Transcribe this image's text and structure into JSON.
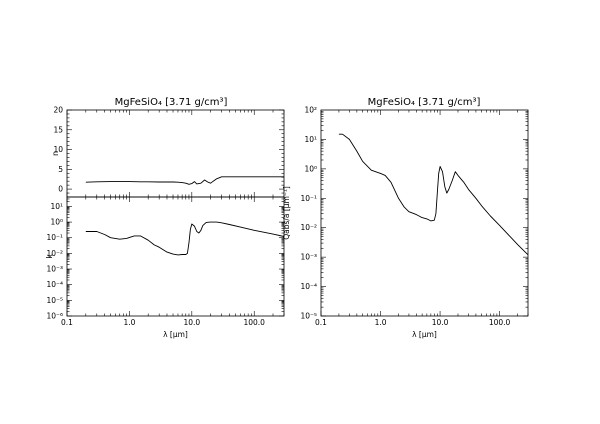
{
  "chart_data": [
    {
      "id": "n",
      "type": "line",
      "title": "MgFeSiO₄ [3.71 g/cm³]",
      "ylabel": "n",
      "xlabel": "",
      "xscale": "log",
      "xlim": [
        0.1,
        300
      ],
      "ylim": [
        -2,
        20
      ],
      "yticks": [
        0,
        5,
        10,
        15,
        20
      ],
      "yticklabels": [
        "0",
        "5",
        "10",
        "15",
        "20"
      ],
      "show_xticklabels": false,
      "x": [
        0.2,
        0.3,
        0.5,
        0.8,
        1.0,
        1.5,
        2.0,
        3.0,
        4.0,
        5.0,
        6.0,
        7.0,
        8.0,
        9.0,
        10.0,
        11.0,
        12.0,
        14.0,
        16.0,
        18.0,
        20.0,
        22.0,
        25.0,
        30.0,
        40.0,
        60.0,
        100.0,
        200.0,
        300.0
      ],
      "y": [
        1.75,
        1.85,
        1.9,
        1.9,
        1.9,
        1.85,
        1.85,
        1.8,
        1.8,
        1.8,
        1.75,
        1.65,
        1.5,
        1.2,
        1.4,
        1.9,
        1.3,
        1.5,
        2.3,
        1.8,
        1.5,
        2.0,
        2.6,
        3.1,
        3.1,
        3.1,
        3.1,
        3.1,
        3.1
      ]
    },
    {
      "id": "k",
      "type": "line",
      "title": "",
      "ylabel": "k",
      "xlabel": "λ [μm]",
      "xscale": "log",
      "yscale": "log",
      "xlim": [
        0.1,
        300
      ],
      "ylim": [
        1e-06,
        40
      ],
      "xticks": [
        0.1,
        1,
        10,
        100
      ],
      "xticklabels": [
        "0.1",
        "1.0",
        "10.0",
        "100.0"
      ],
      "yticks": [
        1e-06,
        1e-05,
        0.0001,
        0.001,
        0.01,
        0.1,
        1,
        10
      ],
      "yticklabels": [
        "10⁻⁶",
        "10⁻⁵",
        "10⁻⁴",
        "10⁻³",
        "10⁻²",
        "10⁻¹",
        "10⁰",
        "10¹"
      ],
      "x": [
        0.2,
        0.3,
        0.4,
        0.5,
        0.7,
        0.9,
        1.2,
        1.5,
        2.0,
        2.5,
        3.0,
        4.0,
        5.0,
        6.0,
        7.0,
        8.0,
        8.5,
        9.0,
        9.5,
        10.0,
        11.0,
        12.0,
        13.0,
        14.0,
        15.0,
        17.0,
        20.0,
        25.0,
        30.0,
        40.0,
        60.0,
        100.0,
        200.0,
        300.0
      ],
      "y": [
        0.25,
        0.25,
        0.16,
        0.1,
        0.08,
        0.09,
        0.13,
        0.13,
        0.07,
        0.035,
        0.025,
        0.012,
        0.009,
        0.008,
        0.0085,
        0.0085,
        0.01,
        0.05,
        0.35,
        0.75,
        0.55,
        0.25,
        0.2,
        0.3,
        0.6,
        0.95,
        1.0,
        1.0,
        0.9,
        0.7,
        0.48,
        0.3,
        0.17,
        0.12
      ]
    },
    {
      "id": "qabs",
      "type": "line",
      "title": "MgFeSiO₄ [3.71 g/cm³]",
      "ylabel": "Qabs/a [μm⁻¹]",
      "xlabel": "λ [μm]",
      "xscale": "log",
      "yscale": "log",
      "xlim": [
        0.1,
        300
      ],
      "ylim": [
        1e-05,
        100
      ],
      "xticks": [
        0.1,
        1,
        10,
        100
      ],
      "xticklabels": [
        "0.1",
        "1.0",
        "10.0",
        "100.0"
      ],
      "yticks": [
        1e-05,
        0.0001,
        0.001,
        0.01,
        0.1,
        1,
        10,
        100
      ],
      "yticklabels": [
        "10⁻⁵",
        "10⁻⁴",
        "10⁻³",
        "10⁻²",
        "10⁻¹",
        "10⁰",
        "10¹",
        "10²"
      ],
      "x": [
        0.2,
        0.23,
        0.3,
        0.4,
        0.5,
        0.7,
        1.0,
        1.2,
        1.5,
        2.0,
        2.5,
        3.0,
        4.0,
        5.0,
        6.0,
        7.0,
        8.0,
        8.5,
        9.0,
        9.5,
        10.0,
        11.0,
        12.0,
        13.0,
        14.0,
        16.0,
        18.0,
        20.0,
        25.0,
        30.0,
        40.0,
        50.0,
        70.0,
        100.0,
        150.0,
        200.0,
        300.0
      ],
      "y": [
        15,
        15,
        10,
        4,
        1.8,
        0.9,
        0.7,
        0.6,
        0.35,
        0.1,
        0.05,
        0.035,
        0.028,
        0.022,
        0.02,
        0.017,
        0.018,
        0.03,
        0.15,
        0.7,
        1.2,
        0.8,
        0.25,
        0.15,
        0.2,
        0.4,
        0.8,
        0.6,
        0.35,
        0.2,
        0.1,
        0.055,
        0.025,
        0.012,
        0.005,
        0.0027,
        0.0012
      ]
    }
  ]
}
